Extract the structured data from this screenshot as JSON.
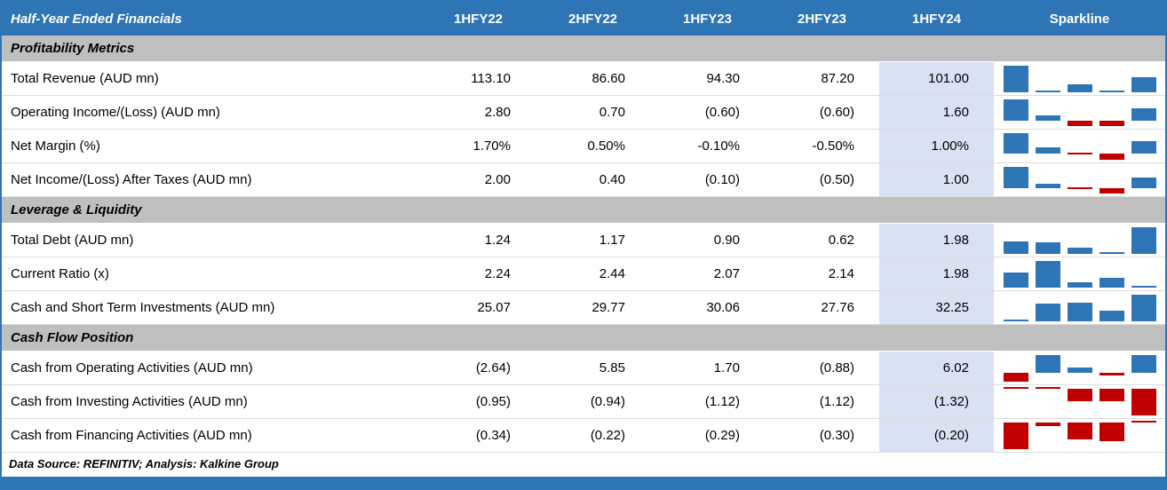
{
  "colors": {
    "accent_blue": "#2E75B6",
    "negative_red": "#C00000",
    "highlight_column": "#D9E1F2",
    "section_gray": "#BFBFBF"
  },
  "header": {
    "title": "Half-Year Ended Financials",
    "columns": [
      "1HFY22",
      "2HFY22",
      "1HFY23",
      "2HFY23",
      "1HFY24",
      "Sparkline"
    ]
  },
  "sections": [
    {
      "title": "Profitability Metrics",
      "rows": [
        {
          "label": "Total Revenue (AUD mn)",
          "cells": [
            "113.10",
            "86.60",
            "94.30",
            "87.20",
            "101.00"
          ]
        },
        {
          "label": "Operating Income/(Loss) (AUD mn)",
          "cells": [
            "2.80",
            "0.70",
            "(0.60)",
            "(0.60)",
            "1.60"
          ]
        },
        {
          "label": "Net Margin (%)",
          "cells": [
            "1.70%",
            "0.50%",
            "-0.10%",
            "-0.50%",
            "1.00%"
          ]
        },
        {
          "label": "Net Income/(Loss) After Taxes (AUD mn)",
          "cells": [
            "2.00",
            "0.40",
            "(0.10)",
            "(0.50)",
            "1.00"
          ]
        }
      ]
    },
    {
      "title": "Leverage & Liquidity",
      "rows": [
        {
          "label": "Total Debt (AUD mn)",
          "cells": [
            "1.24",
            "1.17",
            "0.90",
            "0.62",
            "1.98"
          ]
        },
        {
          "label": "Current Ratio (x)",
          "cells": [
            "2.24",
            "2.44",
            "2.07",
            "2.14",
            "1.98"
          ]
        },
        {
          "label": "Cash and Short Term Investments (AUD mn)",
          "cells": [
            "25.07",
            "29.77",
            "30.06",
            "27.76",
            "32.25"
          ]
        }
      ]
    },
    {
      "title": "Cash Flow Position",
      "rows": [
        {
          "label": "Cash from Operating Activities (AUD mn)",
          "cells": [
            "(2.64)",
            "5.85",
            "1.70",
            "(0.88)",
            "6.02"
          ]
        },
        {
          "label": "Cash from Investing Activities (AUD mn)",
          "cells": [
            "(0.95)",
            "(0.94)",
            "(1.12)",
            "(1.12)",
            "(1.32)"
          ]
        },
        {
          "label": "Cash from Financing Activities (AUD mn)",
          "cells": [
            "(0.34)",
            "(0.22)",
            "(0.29)",
            "(0.30)",
            "(0.20)"
          ]
        }
      ]
    }
  ],
  "footer": {
    "source_note": "Data Source: REFINITIV; Analysis: Kalkine Group"
  },
  "chart_data": {
    "type": "table",
    "categories": [
      "1HFY22",
      "2HFY22",
      "1HFY23",
      "2HFY23",
      "1HFY24"
    ],
    "series": [
      {
        "name": "Total Revenue (AUD mn)",
        "values": [
          113.1,
          86.6,
          94.3,
          87.2,
          101.0
        ]
      },
      {
        "name": "Operating Income/(Loss) (AUD mn)",
        "values": [
          2.8,
          0.7,
          -0.6,
          -0.6,
          1.6
        ]
      },
      {
        "name": "Net Margin (%)",
        "values": [
          1.7,
          0.5,
          -0.1,
          -0.5,
          1.0
        ]
      },
      {
        "name": "Net Income/(Loss) After Taxes (AUD mn)",
        "values": [
          2.0,
          0.4,
          -0.1,
          -0.5,
          1.0
        ]
      },
      {
        "name": "Total Debt (AUD mn)",
        "values": [
          1.24,
          1.17,
          0.9,
          0.62,
          1.98
        ]
      },
      {
        "name": "Current Ratio (x)",
        "values": [
          2.24,
          2.44,
          2.07,
          2.14,
          1.98
        ]
      },
      {
        "name": "Cash and Short Term Investments (AUD mn)",
        "values": [
          25.07,
          29.77,
          30.06,
          27.76,
          32.25
        ]
      },
      {
        "name": "Cash from Operating Activities (AUD mn)",
        "values": [
          -2.64,
          5.85,
          1.7,
          -0.88,
          6.02
        ]
      },
      {
        "name": "Cash from Investing Activities (AUD mn)",
        "values": [
          -0.95,
          -0.94,
          -1.12,
          -1.12,
          -1.32
        ]
      },
      {
        "name": "Cash from Financing Activities (AUD mn)",
        "values": [
          -0.34,
          -0.22,
          -0.29,
          -0.3,
          -0.2
        ]
      }
    ],
    "sparkline_positive_color": "#2E75B6",
    "sparkline_negative_color": "#C00000",
    "title": "Half-Year Ended Financials"
  }
}
